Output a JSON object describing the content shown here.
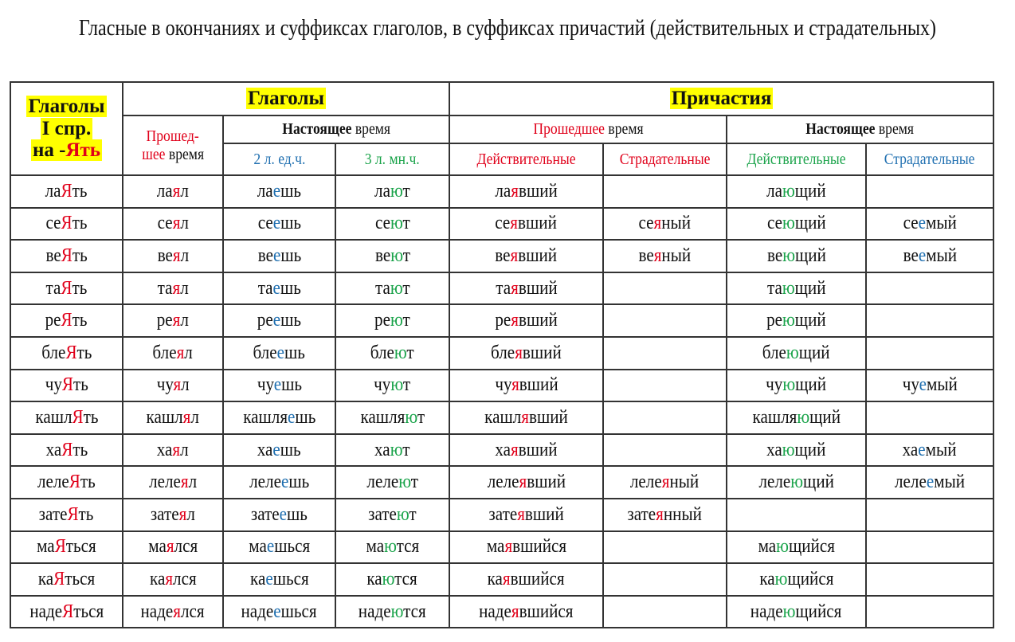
{
  "title": "Гласные в окончаниях и суффиксах глаголов, в суффиксах причастий (действительных и страдательных)",
  "headers": {
    "col1_line1": "Глаголы",
    "col1_line2": "I спр.",
    "col1_line3_a": "на -",
    "col1_line3_b": "Ять",
    "verbs": "Глаголы",
    "participles": "Причастия",
    "past_line1": "Прошед-",
    "past_line2_a": "шее",
    "past_line2_b": " время",
    "present_a": "Настоящее",
    "present_b": " время",
    "p2sg": "2 л. ед.ч.",
    "p3pl": "3 л. мн.ч.",
    "part_past_a": "Прошедшее",
    "part_past_b": " время",
    "part_present_a": "Настоящее",
    "part_present_b": " время",
    "active": "Действительные",
    "passive": "Страдательные",
    "active2": "Действительные",
    "passive2": "Страдательные"
  },
  "colors": {
    "red": "#e0001a",
    "blue": "#1f6fb0",
    "green": "#1aa34a",
    "highlight": "#ffff00"
  },
  "rows": [
    [
      [
        [
          "ла",
          ""
        ],
        [
          "Я",
          "r"
        ],
        [
          "ть",
          ""
        ]
      ],
      [
        [
          "ла",
          ""
        ],
        [
          "я",
          "r"
        ],
        [
          "л",
          ""
        ]
      ],
      [
        [
          "ла",
          ""
        ],
        [
          "е",
          "b"
        ],
        [
          "шь",
          ""
        ]
      ],
      [
        [
          "ла",
          ""
        ],
        [
          "ю",
          "g"
        ],
        [
          "т",
          ""
        ]
      ],
      [
        [
          "ла",
          ""
        ],
        [
          "я",
          "r"
        ],
        [
          "вший",
          ""
        ]
      ],
      [],
      [
        [
          "ла",
          ""
        ],
        [
          "ю",
          "g"
        ],
        [
          "щий",
          ""
        ]
      ],
      []
    ],
    [
      [
        [
          "се",
          ""
        ],
        [
          "Я",
          "r"
        ],
        [
          "ть",
          ""
        ]
      ],
      [
        [
          "се",
          ""
        ],
        [
          "я",
          "r"
        ],
        [
          "л",
          ""
        ]
      ],
      [
        [
          "се",
          ""
        ],
        [
          "е",
          "b"
        ],
        [
          "шь",
          ""
        ]
      ],
      [
        [
          "се",
          ""
        ],
        [
          "ю",
          "g"
        ],
        [
          "т",
          ""
        ]
      ],
      [
        [
          "се",
          ""
        ],
        [
          "я",
          "r"
        ],
        [
          "вший",
          ""
        ]
      ],
      [
        [
          "се",
          ""
        ],
        [
          "я",
          "r"
        ],
        [
          "ный",
          ""
        ]
      ],
      [
        [
          "се",
          ""
        ],
        [
          "ю",
          "g"
        ],
        [
          "щий",
          ""
        ]
      ],
      [
        [
          "се",
          ""
        ],
        [
          "е",
          "b"
        ],
        [
          "мый",
          ""
        ]
      ]
    ],
    [
      [
        [
          "ве",
          ""
        ],
        [
          "Я",
          "r"
        ],
        [
          "ть",
          ""
        ]
      ],
      [
        [
          "ве",
          ""
        ],
        [
          "я",
          "r"
        ],
        [
          "л",
          ""
        ]
      ],
      [
        [
          "ве",
          ""
        ],
        [
          "е",
          "b"
        ],
        [
          "шь",
          ""
        ]
      ],
      [
        [
          "ве",
          ""
        ],
        [
          "ю",
          "g"
        ],
        [
          "т",
          ""
        ]
      ],
      [
        [
          "ве",
          ""
        ],
        [
          "я",
          "r"
        ],
        [
          "вший",
          ""
        ]
      ],
      [
        [
          "ве",
          ""
        ],
        [
          "я",
          "r"
        ],
        [
          "ный",
          ""
        ]
      ],
      [
        [
          "ве",
          ""
        ],
        [
          "ю",
          "g"
        ],
        [
          "щий",
          ""
        ]
      ],
      [
        [
          "ве",
          ""
        ],
        [
          "е",
          "b"
        ],
        [
          "мый",
          ""
        ]
      ]
    ],
    [
      [
        [
          "та",
          ""
        ],
        [
          "Я",
          "r"
        ],
        [
          "ть",
          ""
        ]
      ],
      [
        [
          "та",
          ""
        ],
        [
          "я",
          "r"
        ],
        [
          "л",
          ""
        ]
      ],
      [
        [
          "та",
          ""
        ],
        [
          "е",
          "b"
        ],
        [
          "шь",
          ""
        ]
      ],
      [
        [
          "та",
          ""
        ],
        [
          "ю",
          "g"
        ],
        [
          "т",
          ""
        ]
      ],
      [
        [
          "та",
          ""
        ],
        [
          "я",
          "r"
        ],
        [
          "вший",
          ""
        ]
      ],
      [],
      [
        [
          "та",
          ""
        ],
        [
          "ю",
          "g"
        ],
        [
          "щий",
          ""
        ]
      ],
      []
    ],
    [
      [
        [
          "ре",
          ""
        ],
        [
          "Я",
          "r"
        ],
        [
          "ть",
          ""
        ]
      ],
      [
        [
          "ре",
          ""
        ],
        [
          "я",
          "r"
        ],
        [
          "л",
          ""
        ]
      ],
      [
        [
          "ре",
          ""
        ],
        [
          "е",
          "b"
        ],
        [
          "шь",
          ""
        ]
      ],
      [
        [
          "ре",
          ""
        ],
        [
          "ю",
          "g"
        ],
        [
          "т",
          ""
        ]
      ],
      [
        [
          "ре",
          ""
        ],
        [
          "я",
          "r"
        ],
        [
          "вший",
          ""
        ]
      ],
      [],
      [
        [
          "ре",
          ""
        ],
        [
          "ю",
          "g"
        ],
        [
          "щий",
          ""
        ]
      ],
      []
    ],
    [
      [
        [
          "бле",
          ""
        ],
        [
          "Я",
          "r"
        ],
        [
          "ть",
          ""
        ]
      ],
      [
        [
          "бле",
          ""
        ],
        [
          "я",
          "r"
        ],
        [
          "л",
          ""
        ]
      ],
      [
        [
          "бле",
          ""
        ],
        [
          "е",
          "b"
        ],
        [
          "шь",
          ""
        ]
      ],
      [
        [
          "бле",
          ""
        ],
        [
          "ю",
          "g"
        ],
        [
          "т",
          ""
        ]
      ],
      [
        [
          "бле",
          ""
        ],
        [
          "я",
          "r"
        ],
        [
          "вший",
          ""
        ]
      ],
      [],
      [
        [
          "бле",
          ""
        ],
        [
          "ю",
          "g"
        ],
        [
          "щий",
          ""
        ]
      ],
      []
    ],
    [
      [
        [
          "чу",
          ""
        ],
        [
          "Я",
          "r"
        ],
        [
          "ть",
          ""
        ]
      ],
      [
        [
          "чу",
          ""
        ],
        [
          "я",
          "r"
        ],
        [
          "л",
          ""
        ]
      ],
      [
        [
          "чу",
          ""
        ],
        [
          "е",
          "b"
        ],
        [
          "шь",
          ""
        ]
      ],
      [
        [
          "чу",
          ""
        ],
        [
          "ю",
          "g"
        ],
        [
          "т",
          ""
        ]
      ],
      [
        [
          "чу",
          ""
        ],
        [
          "я",
          "r"
        ],
        [
          "вший",
          ""
        ]
      ],
      [],
      [
        [
          "чу",
          ""
        ],
        [
          "ю",
          "g"
        ],
        [
          "щий",
          ""
        ]
      ],
      [
        [
          "чу",
          ""
        ],
        [
          "е",
          "b"
        ],
        [
          "мый",
          ""
        ]
      ]
    ],
    [
      [
        [
          "кашл",
          ""
        ],
        [
          "Я",
          "r"
        ],
        [
          "ть",
          ""
        ]
      ],
      [
        [
          "кашл",
          ""
        ],
        [
          "я",
          "r"
        ],
        [
          "л",
          ""
        ]
      ],
      [
        [
          "кашля",
          ""
        ],
        [
          "е",
          "b"
        ],
        [
          "шь",
          ""
        ]
      ],
      [
        [
          "кашля",
          ""
        ],
        [
          "ю",
          "g"
        ],
        [
          "т",
          ""
        ]
      ],
      [
        [
          "кашл",
          ""
        ],
        [
          "я",
          "r"
        ],
        [
          "вший",
          ""
        ]
      ],
      [],
      [
        [
          "кашля",
          ""
        ],
        [
          "ю",
          "g"
        ],
        [
          "щий",
          ""
        ]
      ],
      []
    ],
    [
      [
        [
          "ха",
          ""
        ],
        [
          "Я",
          "r"
        ],
        [
          "ть",
          ""
        ]
      ],
      [
        [
          "ха",
          ""
        ],
        [
          "я",
          "r"
        ],
        [
          "л",
          ""
        ]
      ],
      [
        [
          "ха",
          ""
        ],
        [
          "е",
          "b"
        ],
        [
          "шь",
          ""
        ]
      ],
      [
        [
          "ха",
          ""
        ],
        [
          "ю",
          "g"
        ],
        [
          "т",
          ""
        ]
      ],
      [
        [
          "ха",
          ""
        ],
        [
          "я",
          "r"
        ],
        [
          "вший",
          ""
        ]
      ],
      [],
      [
        [
          "ха",
          ""
        ],
        [
          "ю",
          "g"
        ],
        [
          "щий",
          ""
        ]
      ],
      [
        [
          "ха",
          ""
        ],
        [
          "е",
          "b"
        ],
        [
          "мый",
          ""
        ]
      ]
    ],
    [
      [
        [
          "леле",
          ""
        ],
        [
          "Я",
          "r"
        ],
        [
          "ть",
          ""
        ]
      ],
      [
        [
          "леле",
          ""
        ],
        [
          "я",
          "r"
        ],
        [
          "л",
          ""
        ]
      ],
      [
        [
          "леле",
          ""
        ],
        [
          "е",
          "b"
        ],
        [
          "шь",
          ""
        ]
      ],
      [
        [
          "леле",
          ""
        ],
        [
          "ю",
          "g"
        ],
        [
          "т",
          ""
        ]
      ],
      [
        [
          "леле",
          ""
        ],
        [
          "я",
          "r"
        ],
        [
          "вший",
          ""
        ]
      ],
      [
        [
          "леле",
          ""
        ],
        [
          "я",
          "r"
        ],
        [
          "ный",
          ""
        ]
      ],
      [
        [
          "леле",
          ""
        ],
        [
          "ю",
          "g"
        ],
        [
          "щий",
          ""
        ]
      ],
      [
        [
          "леле",
          ""
        ],
        [
          "е",
          "b"
        ],
        [
          "мый",
          ""
        ]
      ]
    ],
    [
      [
        [
          "зате",
          ""
        ],
        [
          "Я",
          "r"
        ],
        [
          "ть",
          ""
        ]
      ],
      [
        [
          "зате",
          ""
        ],
        [
          "я",
          "r"
        ],
        [
          "л",
          ""
        ]
      ],
      [
        [
          "зате",
          ""
        ],
        [
          "е",
          "b"
        ],
        [
          "шь",
          ""
        ]
      ],
      [
        [
          "зате",
          ""
        ],
        [
          "ю",
          "g"
        ],
        [
          "т",
          ""
        ]
      ],
      [
        [
          "зате",
          ""
        ],
        [
          "я",
          "r"
        ],
        [
          "вший",
          ""
        ]
      ],
      [
        [
          "зате",
          ""
        ],
        [
          "я",
          "r"
        ],
        [
          "нный",
          ""
        ]
      ],
      [],
      []
    ],
    [
      [
        [
          "ма",
          ""
        ],
        [
          "Я",
          "r"
        ],
        [
          "ться",
          ""
        ]
      ],
      [
        [
          "ма",
          ""
        ],
        [
          "я",
          "r"
        ],
        [
          "лся",
          ""
        ]
      ],
      [
        [
          "ма",
          ""
        ],
        [
          "е",
          "b"
        ],
        [
          "шься",
          ""
        ]
      ],
      [
        [
          "ма",
          ""
        ],
        [
          "ю",
          "g"
        ],
        [
          "тся",
          ""
        ]
      ],
      [
        [
          "ма",
          ""
        ],
        [
          "я",
          "r"
        ],
        [
          "вшийся",
          ""
        ]
      ],
      [],
      [
        [
          "ма",
          ""
        ],
        [
          "ю",
          "g"
        ],
        [
          "щийся",
          ""
        ]
      ],
      []
    ],
    [
      [
        [
          "ка",
          ""
        ],
        [
          "Я",
          "r"
        ],
        [
          "ться",
          ""
        ]
      ],
      [
        [
          "ка",
          ""
        ],
        [
          "я",
          "r"
        ],
        [
          "лся",
          ""
        ]
      ],
      [
        [
          "ка",
          ""
        ],
        [
          "е",
          "b"
        ],
        [
          "шься",
          ""
        ]
      ],
      [
        [
          "ка",
          ""
        ],
        [
          "ю",
          "g"
        ],
        [
          "тся",
          ""
        ]
      ],
      [
        [
          "ка",
          ""
        ],
        [
          "я",
          "r"
        ],
        [
          "вшийся",
          ""
        ]
      ],
      [],
      [
        [
          "ка",
          ""
        ],
        [
          "ю",
          "g"
        ],
        [
          "щийся",
          ""
        ]
      ],
      []
    ],
    [
      [
        [
          "наде",
          ""
        ],
        [
          "Я",
          "r"
        ],
        [
          "ться",
          ""
        ]
      ],
      [
        [
          "наде",
          ""
        ],
        [
          "я",
          "r"
        ],
        [
          "лся",
          ""
        ]
      ],
      [
        [
          "наде",
          ""
        ],
        [
          "е",
          "b"
        ],
        [
          "шься",
          ""
        ]
      ],
      [
        [
          "наде",
          ""
        ],
        [
          "ю",
          "g"
        ],
        [
          "тся",
          ""
        ]
      ],
      [
        [
          "наде",
          ""
        ],
        [
          "я",
          "r"
        ],
        [
          "вшийся",
          ""
        ]
      ],
      [],
      [
        [
          "наде",
          ""
        ],
        [
          "ю",
          "g"
        ],
        [
          "щийся",
          ""
        ]
      ],
      []
    ]
  ]
}
